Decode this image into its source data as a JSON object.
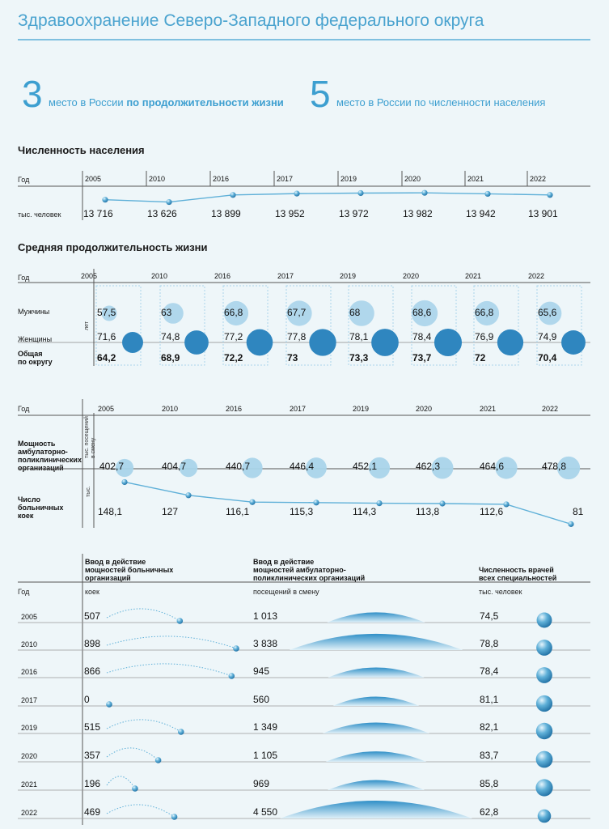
{
  "title": "Здравоохранение Северо-Западного федерального округа",
  "ranks": [
    {
      "number": "3",
      "prefix": "место в России ",
      "bold": "по продолжительности жизни",
      "suffix": ""
    },
    {
      "number": "5",
      "prefix": "место в России по численности населения",
      "bold": "",
      "suffix": ""
    }
  ],
  "years": [
    "2005",
    "2010",
    "2016",
    "2017",
    "2019",
    "2020",
    "2021",
    "2022"
  ],
  "population": {
    "title": "Численность населения",
    "year_label": "Год",
    "unit_label": "тыс. человек",
    "display": [
      "13 716",
      "13 626",
      "13 899",
      "13 952",
      "13 972",
      "13 982",
      "13 942",
      "13 901"
    ]
  },
  "life": {
    "title": "Средняя продолжительность жизни",
    "year_label": "Год",
    "unit_label": "лет",
    "men_label": "Мужчины",
    "women_label": "Женщины",
    "total_label_1": "Общая",
    "total_label_2": "по округу",
    "men_display": [
      "57,5",
      "63",
      "66,8",
      "67,7",
      "68",
      "68,6",
      "66,8",
      "65,6"
    ],
    "women_display": [
      "71,6",
      "74,8",
      "77,2",
      "77,8",
      "78,1",
      "78,4",
      "76,9",
      "74,9"
    ],
    "total_display": [
      "64,2",
      "68,9",
      "72,2",
      "73",
      "73,3",
      "73,7",
      "72",
      "70,4"
    ]
  },
  "capacity": {
    "year_label": "Год",
    "amb_label": [
      "Мощность",
      "амбулаторно-",
      "поликлинических",
      "организаций"
    ],
    "amb_unit": [
      "тыс. посещений",
      "в смену"
    ],
    "amb_display": [
      "402,7",
      "404,7",
      "440,7",
      "446,4",
      "452,1",
      "462,3",
      "464,6",
      "478,8"
    ],
    "beds_label": [
      "Число",
      "больничных",
      "коек"
    ],
    "beds_unit": "тыс.",
    "beds_display": [
      "148,1",
      "127",
      "116,1",
      "115,3",
      "114,3",
      "113,8",
      "112,6",
      "81"
    ]
  },
  "intro": {
    "year_label": "Год",
    "col1_header": [
      "Ввод в действие",
      "мощностей больничных",
      "организаций"
    ],
    "col1_unit": "коек",
    "col2_header": [
      "Ввод в действие",
      "мощностей амбулаторно-",
      "поликлинических организаций"
    ],
    "col2_unit": "посещений в смену",
    "col3_header": [
      "Численность врачей",
      "всех специальностей"
    ],
    "col3_unit": "тыс. человек",
    "rows": [
      {
        "year": "2005",
        "beds": "507",
        "visits": "1 013",
        "doctors": "74,5"
      },
      {
        "year": "2010",
        "beds": "898",
        "visits": "3 838",
        "doctors": "78,8"
      },
      {
        "year": "2016",
        "beds": "866",
        "visits": "945",
        "doctors": "78,4"
      },
      {
        "year": "2017",
        "beds": "0",
        "visits": "560",
        "doctors": "81,1"
      },
      {
        "year": "2019",
        "beds": "515",
        "visits": "1 349",
        "doctors": "82,1"
      },
      {
        "year": "2020",
        "beds": "357",
        "visits": "1 105",
        "doctors": "83,7"
      },
      {
        "year": "2021",
        "beds": "196",
        "visits": "969",
        "doctors": "85,8"
      },
      {
        "year": "2022",
        "beds": "469",
        "visits": "4 550",
        "doctors": "62,8"
      }
    ]
  },
  "colors": {
    "accent": "#3d9fd0",
    "light": "#a9d4ea",
    "line": "#5fb0d8",
    "dark": "#2f86bf"
  },
  "chart_data": [
    {
      "type": "line",
      "title": "Численность населения",
      "ylabel": "тыс. человек",
      "categories": [
        "2005",
        "2010",
        "2016",
        "2017",
        "2019",
        "2020",
        "2021",
        "2022"
      ],
      "values": [
        13716,
        13626,
        13899,
        13952,
        13972,
        13982,
        13942,
        13901
      ]
    },
    {
      "type": "scatter",
      "title": "Средняя продолжительность жизни",
      "ylabel": "лет",
      "categories": [
        "2005",
        "2010",
        "2016",
        "2017",
        "2019",
        "2020",
        "2021",
        "2022"
      ],
      "series": [
        {
          "name": "Мужчины",
          "values": [
            57.5,
            63,
            66.8,
            67.7,
            68,
            68.6,
            66.8,
            65.6
          ]
        },
        {
          "name": "Женщины",
          "values": [
            71.6,
            74.8,
            77.2,
            77.8,
            78.1,
            78.4,
            76.9,
            74.9
          ]
        },
        {
          "name": "Общая по округу",
          "values": [
            64.2,
            68.9,
            72.2,
            73,
            73.3,
            73.7,
            72,
            70.4
          ]
        }
      ]
    },
    {
      "type": "scatter",
      "categories": [
        "2005",
        "2010",
        "2016",
        "2017",
        "2019",
        "2020",
        "2021",
        "2022"
      ],
      "series": [
        {
          "name": "Мощность амбулаторно-поликлинических организаций",
          "values": [
            402.7,
            404.7,
            440.7,
            446.4,
            452.1,
            462.3,
            464.6,
            478.8
          ]
        }
      ]
    },
    {
      "type": "line",
      "categories": [
        "2005",
        "2010",
        "2016",
        "2017",
        "2019",
        "2020",
        "2021",
        "2022"
      ],
      "series": [
        {
          "name": "Число больничных коек",
          "values": [
            148.1,
            127,
            116.1,
            115.3,
            114.3,
            113.8,
            112.6,
            81
          ]
        }
      ]
    },
    {
      "type": "table",
      "categories": [
        "2005",
        "2010",
        "2016",
        "2017",
        "2019",
        "2020",
        "2021",
        "2022"
      ],
      "series": [
        {
          "name": "Ввод в действие мощностей больничных организаций",
          "values": [
            507,
            898,
            866,
            0,
            515,
            357,
            196,
            469
          ]
        },
        {
          "name": "Ввод в действие мощностей амбулаторно-поликлинических организаций",
          "values": [
            1013,
            3838,
            945,
            560,
            1349,
            1105,
            969,
            4550
          ]
        },
        {
          "name": "Численность врачей всех специальностей",
          "values": [
            74.5,
            78.8,
            78.4,
            81.1,
            82.1,
            83.7,
            85.8,
            62.8
          ]
        }
      ]
    }
  ]
}
